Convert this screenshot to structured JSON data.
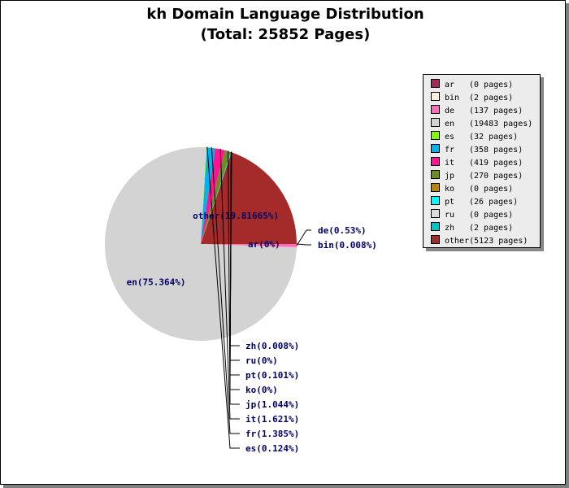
{
  "title": {
    "line1": "kh Domain Language Distribution",
    "line2": "(Total: 25852 Pages)"
  },
  "chart_data": {
    "type": "pie",
    "title": "kh Domain Language Distribution (Total: 25852 Pages)",
    "total_pages": 25852,
    "slices": [
      {
        "code": "ar",
        "pages": 0,
        "percent_label": "ar(0%)",
        "legend_pages": "(0 pages)",
        "color": "#a6275a"
      },
      {
        "code": "bin",
        "pages": 2,
        "percent_label": "bin(0.008%)",
        "legend_pages": "(2 pages)",
        "color": "#fff0e0"
      },
      {
        "code": "de",
        "pages": 137,
        "percent_label": "de(0.53%)",
        "legend_pages": "(137 pages)",
        "color": "#ff6eb4"
      },
      {
        "code": "en",
        "pages": 19483,
        "percent_label": "en(75.364%)",
        "legend_pages": "(19483 pages)",
        "color": "#d3d3d3"
      },
      {
        "code": "es",
        "pages": 32,
        "percent_label": "es(0.124%)",
        "legend_pages": "(32 pages)",
        "color": "#7fff00"
      },
      {
        "code": "fr",
        "pages": 358,
        "percent_label": "fr(1.385%)",
        "legend_pages": "(358 pages)",
        "color": "#00b2ee"
      },
      {
        "code": "it",
        "pages": 419,
        "percent_label": "it(1.621%)",
        "legend_pages": "(419 pages)",
        "color": "#ff1493"
      },
      {
        "code": "jp",
        "pages": 270,
        "percent_label": "jp(1.044%)",
        "legend_pages": "(270 pages)",
        "color": "#6b8e23"
      },
      {
        "code": "ko",
        "pages": 0,
        "percent_label": "ko(0%)",
        "legend_pages": "(0 pages)",
        "color": "#b8860b"
      },
      {
        "code": "pt",
        "pages": 26,
        "percent_label": "pt(0.101%)",
        "legend_pages": "(26 pages)",
        "color": "#00ffff"
      },
      {
        "code": "ru",
        "pages": 0,
        "percent_label": "ru(0%)",
        "legend_pages": "(0 pages)",
        "color": "#dcdcdc"
      },
      {
        "code": "zh",
        "pages": 2,
        "percent_label": "zh(0.008%)",
        "legend_pages": "(2 pages)",
        "color": "#00c5cd"
      },
      {
        "code": "other",
        "pages": 5123,
        "percent_label": "other(19.81665%)",
        "legend_pages": "(5123 pages)",
        "color": "#a52a2a"
      }
    ]
  }
}
